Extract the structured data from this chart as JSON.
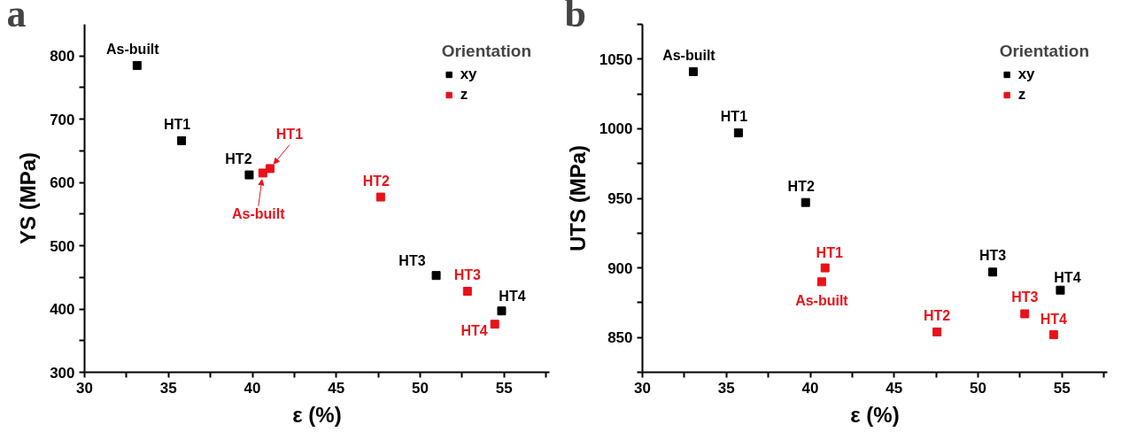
{
  "chart_data": [
    {
      "type": "scatter",
      "xlabel": "ε (%)",
      "ylabel": "YS (MPa)",
      "legend_title": "Orientation",
      "legend": "top right",
      "marker": "square",
      "grid": false,
      "xlim": [
        30,
        57.7
      ],
      "xticks": [
        30,
        {
          "value": 32.5,
          "label": null
        },
        35,
        {
          "value": 37.5,
          "label": null
        },
        40,
        {
          "value": 42.5,
          "label": null
        },
        45,
        {
          "value": 47.5,
          "label": null
        },
        50,
        {
          "value": 52.5,
          "label": null
        },
        55,
        {
          "value": 57.5,
          "label": null
        }
      ],
      "ylim": [
        300,
        850
      ],
      "yticks": [
        300,
        {
          "value": 350,
          "label": null
        },
        400,
        {
          "value": 450,
          "label": null
        },
        500,
        {
          "value": 550,
          "label": null
        },
        600,
        {
          "value": 650,
          "label": null
        },
        700,
        {
          "value": 750,
          "label": null
        },
        800
      ],
      "series": [
        {
          "name": "xy",
          "color": "#000000",
          "x": [
            33.13,
            35.78,
            39.81,
            50.95,
            54.85
          ],
          "values": [
            785,
            666,
            612,
            453,
            397
          ]
        },
        {
          "name": "z",
          "color": "#e8121a",
          "x": [
            40.62,
            41.05,
            47.64,
            52.81,
            54.44
          ],
          "values": [
            615,
            622,
            577,
            428,
            376
          ]
        }
      ],
      "annotations": [
        "a",
        {
          "text": "As-built",
          "x": 33.13,
          "y": 785
        },
        {
          "text": "HT1",
          "x": 35.78,
          "y": 666
        },
        {
          "text": "HT2",
          "x": 39.81,
          "y": 612
        },
        {
          "text": "HT3",
          "x": 50.95,
          "y": 453
        },
        {
          "text": "HT4",
          "x": 54.85,
          "y": 397
        },
        {
          "text": "As-built",
          "x": 40.62,
          "y": 615
        },
        {
          "text": "HT1",
          "x": 41.05,
          "y": 622
        },
        {
          "text": "HT2",
          "x": 47.64,
          "y": 577
        },
        {
          "text": "HT3",
          "x": 52.81,
          "y": 428
        },
        {
          "text": "HT4",
          "x": 54.44,
          "y": 376
        }
      ]
    },
    {
      "type": "scatter",
      "xlabel": "ε (%)",
      "ylabel": "UTS (MPa)",
      "legend_title": "Orientation",
      "legend": "top right",
      "marker": "square",
      "grid": false,
      "xlim": [
        30,
        57.7
      ],
      "xticks": [
        30,
        {
          "value": 32.5,
          "label": null
        },
        35,
        {
          "value": 37.5,
          "label": null
        },
        40,
        {
          "value": 42.5,
          "label": null
        },
        45,
        {
          "value": 47.5,
          "label": null
        },
        50,
        {
          "value": 52.5,
          "label": null
        },
        55,
        {
          "value": 57.5,
          "label": null
        }
      ],
      "ylim": [
        825,
        1075
      ],
      "yticks": [
        {
          "value": 825,
          "label": null
        },
        850,
        {
          "value": 875,
          "label": null
        },
        900,
        {
          "value": 925,
          "label": null
        },
        950,
        {
          "value": 975,
          "label": null
        },
        1000,
        {
          "value": 1025,
          "label": null
        },
        1050,
        {
          "value": 1075,
          "label": null
        }
      ],
      "series": [
        {
          "name": "xy",
          "color": "#000000",
          "x": [
            33.03,
            35.72,
            39.72,
            50.87,
            54.9
          ],
          "values": [
            1041,
            997,
            947,
            897,
            884
          ]
        },
        {
          "name": "z",
          "color": "#e8121a",
          "x": [
            40.68,
            40.88,
            47.55,
            52.78,
            54.5
          ],
          "values": [
            890,
            900,
            854,
            867,
            852
          ]
        }
      ],
      "annotations": [
        "b",
        {
          "text": "As-built",
          "x": 33.03,
          "y": 1041
        },
        {
          "text": "HT1",
          "x": 35.72,
          "y": 997
        },
        {
          "text": "HT2",
          "x": 39.72,
          "y": 947
        },
        {
          "text": "HT3",
          "x": 50.87,
          "y": 897
        },
        {
          "text": "HT4",
          "x": 54.9,
          "y": 884
        },
        {
          "text": "As-built",
          "x": 40.68,
          "y": 890
        },
        {
          "text": "HT1",
          "x": 40.88,
          "y": 900
        },
        {
          "text": "HT2",
          "x": 47.55,
          "y": 854
        },
        {
          "text": "HT3",
          "x": 52.78,
          "y": 867
        },
        {
          "text": "HT4",
          "x": 54.5,
          "y": 852
        }
      ]
    }
  ]
}
